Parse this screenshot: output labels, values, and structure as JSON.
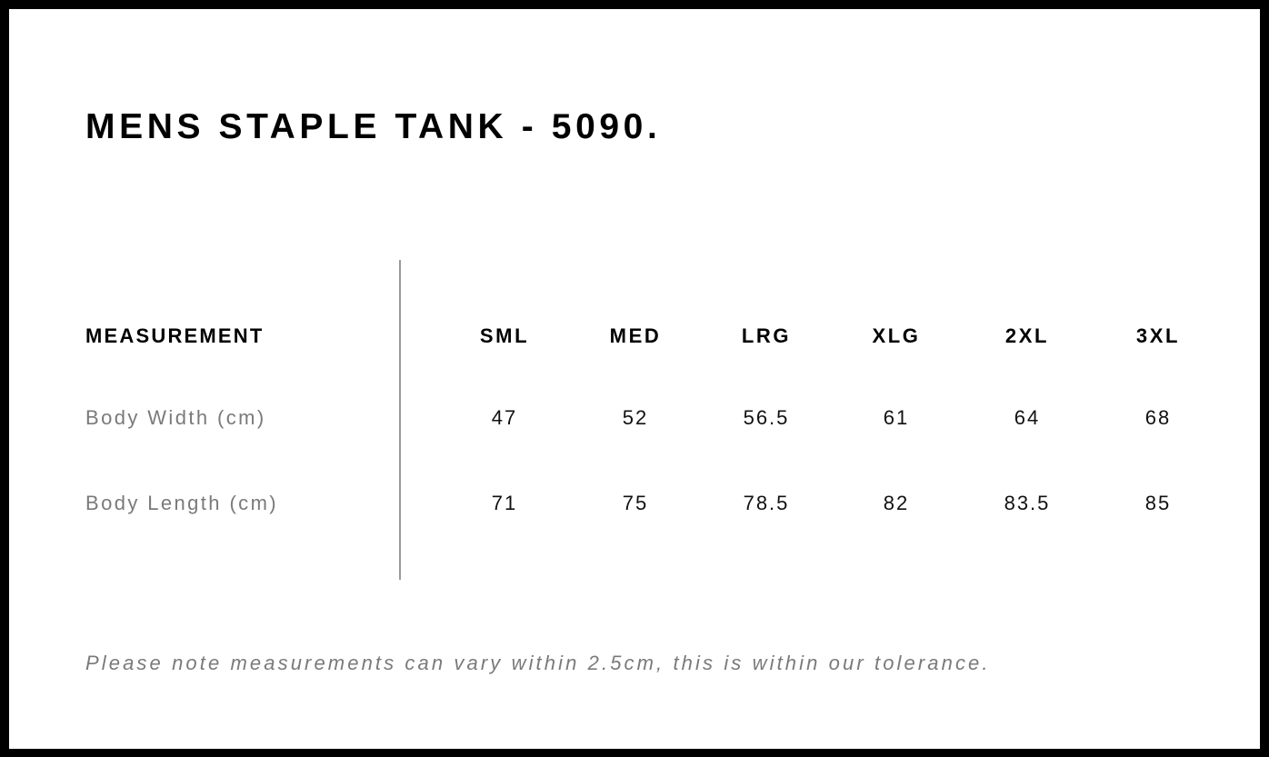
{
  "title": "MENS STAPLE TANK - 5090.",
  "table": {
    "header_label": "MEASUREMENT",
    "sizes": [
      "SML",
      "MED",
      "LRG",
      "XLG",
      "2XL",
      "3XL"
    ],
    "rows": [
      {
        "label": "Body Width (cm)",
        "values": [
          "47",
          "52",
          "56.5",
          "61",
          "64",
          "68"
        ]
      },
      {
        "label": "Body Length (cm)",
        "values": [
          "71",
          "75",
          "78.5",
          "82",
          "83.5",
          "85"
        ]
      }
    ]
  },
  "note": "Please note measurements can vary within 2.5cm, this is within our tolerance.",
  "colors": {
    "border": "#000000",
    "label_text": "#7a7a7a",
    "divider": "#999999"
  }
}
